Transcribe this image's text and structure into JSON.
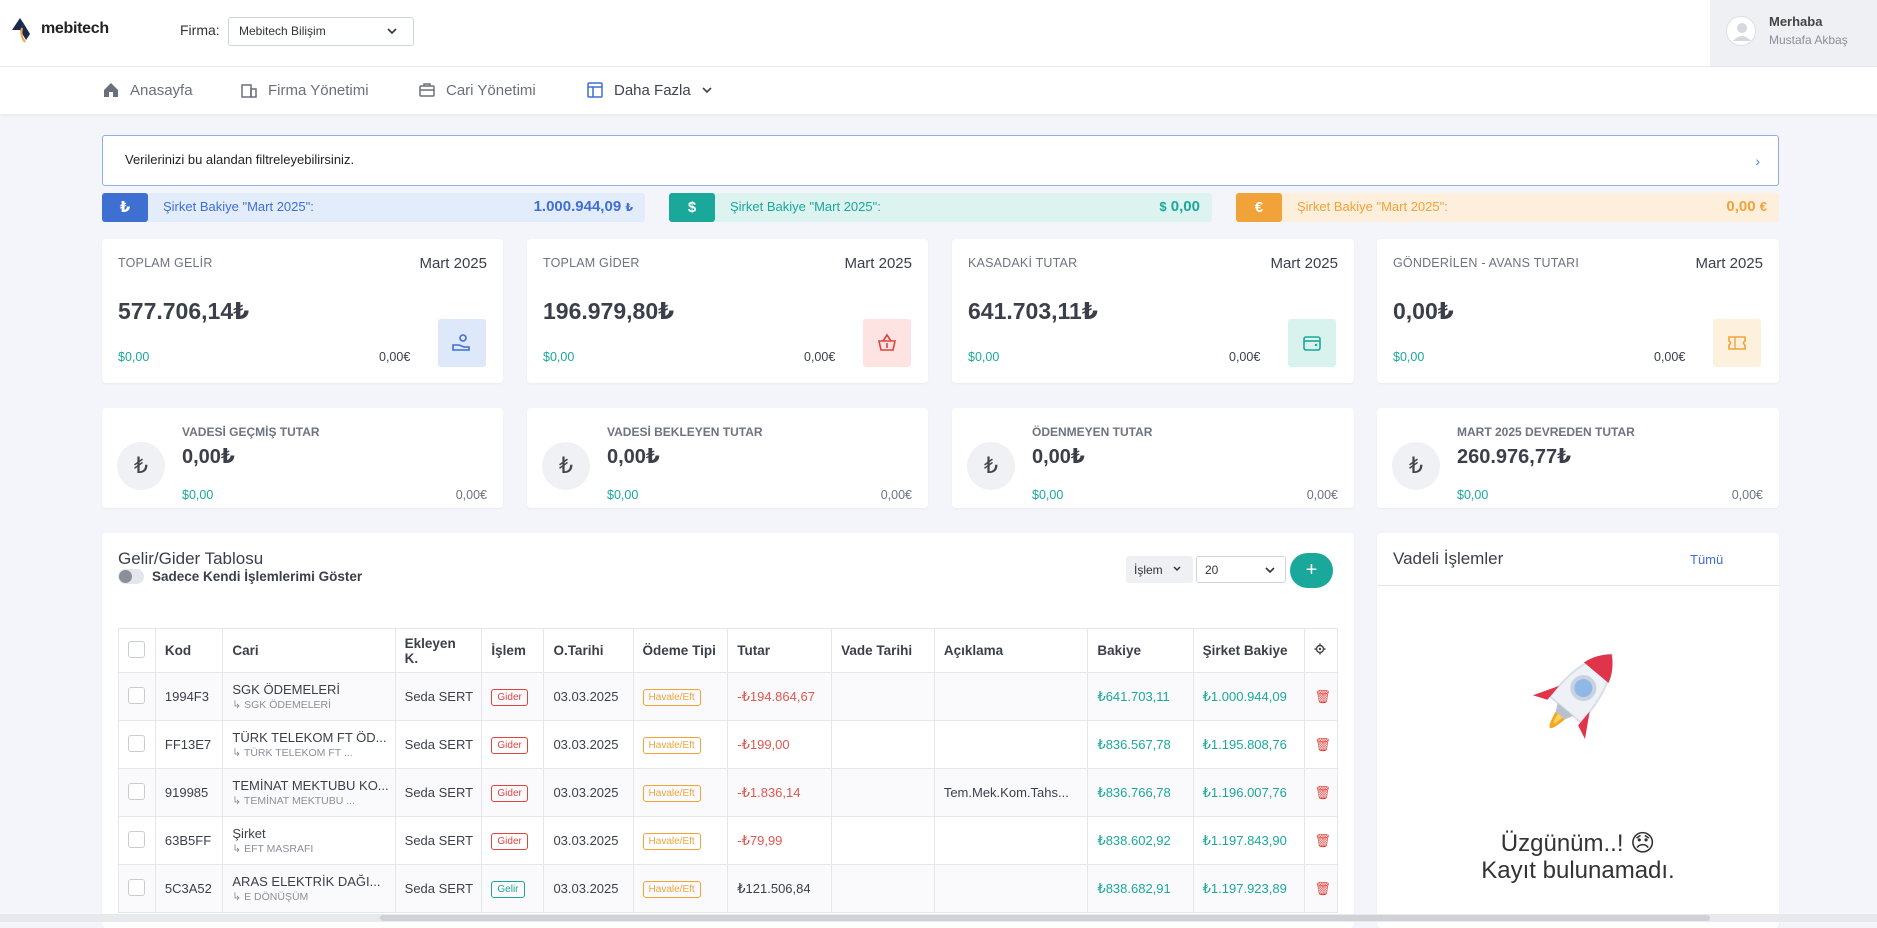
{
  "header": {
    "logo_text": "mebitech",
    "firma_label": "Firma:",
    "firma_value": "Mebitech Bilişim",
    "greeting": "Merhaba",
    "user_name": "Mustafa Akbaş"
  },
  "nav": [
    {
      "label": "Anasayfa",
      "icon": "home-icon"
    },
    {
      "label": "Firma Yönetimi",
      "icon": "building-icon"
    },
    {
      "label": "Cari Yönetimi",
      "icon": "briefcase-icon"
    },
    {
      "label": "Daha Fazla",
      "icon": "table-icon"
    }
  ],
  "filter": {
    "text": "Verilerinizi bu alandan filtreleyebilirsiniz."
  },
  "balances": [
    {
      "symbol": "₺",
      "label": "Şirket Bakiye \"Mart 2025\":",
      "value": "1.000.944,09",
      "unit": "₺",
      "color": "#3f6fd1"
    },
    {
      "symbol": "$",
      "label": "Şirket Bakiye \"Mart 2025\":",
      "value": "0,00",
      "unit": "$",
      "color": "#1aa89a"
    },
    {
      "symbol": "€",
      "label": "Şirket Bakiye \"Mart 2025\":",
      "value": "0,00",
      "unit": "€",
      "color": "#f1a33a"
    }
  ],
  "stats": [
    {
      "title": "TOPLAM GELİR",
      "month": "Mart 2025",
      "value": "577.706,14₺",
      "usd": "$0,00",
      "eur": "0,00€",
      "icon": "hand-money-icon"
    },
    {
      "title": "TOPLAM GİDER",
      "month": "Mart 2025",
      "value": "196.979,80₺",
      "usd": "$0,00",
      "eur": "0,00€",
      "icon": "basket-icon"
    },
    {
      "title": "KASADAKİ TUTAR",
      "month": "Mart 2025",
      "value": "641.703,11₺",
      "usd": "$0,00",
      "eur": "0,00€",
      "icon": "wallet-icon"
    },
    {
      "title": "GÖNDERİLEN - AVANS TUTARI",
      "month": "Mart 2025",
      "value": "0,00₺",
      "usd": "$0,00",
      "eur": "0,00€",
      "icon": "ticket-icon"
    }
  ],
  "minis": [
    {
      "title": "VADESİ GEÇMİŞ TUTAR",
      "value": "0,00₺",
      "usd": "$0,00",
      "eur": "0,00€",
      "symbol": "₺"
    },
    {
      "title": "VADESİ BEKLEYEN TUTAR",
      "value": "0,00₺",
      "usd": "$0,00",
      "eur": "0,00€",
      "symbol": "₺"
    },
    {
      "title": "ÖDENMEYEN TUTAR",
      "value": "0,00₺",
      "usd": "$0,00",
      "eur": "0,00€",
      "symbol": "₺"
    },
    {
      "title": "MART 2025 DEVREDEN TUTAR",
      "value": "260.976,77₺",
      "usd": "$0,00",
      "eur": "0,00€",
      "symbol": "₺"
    }
  ],
  "table": {
    "title": "Gelir/Gider Tablosu",
    "toggle_label": "Sadece Kendi İşlemlerimi Göster",
    "islem_button": "İşlem",
    "page_size": "20",
    "add_label": "+",
    "columns": [
      "Kod",
      "Cari",
      "Ekleyen K.",
      "İşlem",
      "O.Tarihi",
      "Ödeme Tipi",
      "Tutar",
      "Vade Tarihi",
      "Açıklama",
      "Bakiye",
      "Şirket Bakiye"
    ],
    "rows": [
      {
        "kod": "1994F3",
        "cari": "SGK ÖDEMELERİ",
        "cari_sub": "↳ SGK ÖDEMELERİ",
        "ekleyen": "Seda SERT",
        "islem": "Gider",
        "tarih": "03.03.2025",
        "odeme": "Havale/Eft",
        "tutar": "-₺194.864,67",
        "vade": "",
        "aciklama": "",
        "bakiye": "₺641.703,11",
        "sirket": "₺1.000.944,09"
      },
      {
        "kod": "FF13E7",
        "cari": "TÜRK TELEKOM FT ÖD...",
        "cari_sub": "↳ TÜRK TELEKOM FT ...",
        "ekleyen": "Seda SERT",
        "islem": "Gider",
        "tarih": "03.03.2025",
        "odeme": "Havale/Eft",
        "tutar": "-₺199,00",
        "vade": "",
        "aciklama": "",
        "bakiye": "₺836.567,78",
        "sirket": "₺1.195.808,76"
      },
      {
        "kod": "919985",
        "cari": "TEMİNAT MEKTUBU KO...",
        "cari_sub": "↳ TEMİNAT MEKTUBU ...",
        "ekleyen": "Seda SERT",
        "islem": "Gider",
        "tarih": "03.03.2025",
        "odeme": "Havale/Eft",
        "tutar": "-₺1.836,14",
        "vade": "",
        "aciklama": "Tem.Mek.Kom.Tahs...",
        "bakiye": "₺836.766,78",
        "sirket": "₺1.196.007,76"
      },
      {
        "kod": "63B5FF",
        "cari": "Şirket",
        "cari_sub": "↳ EFT MASRAFI",
        "ekleyen": "Seda SERT",
        "islem": "Gider",
        "tarih": "03.03.2025",
        "odeme": "Havale/Eft",
        "tutar": "-₺79,99",
        "vade": "",
        "aciklama": "",
        "bakiye": "₺838.602,92",
        "sirket": "₺1.197.843,90"
      },
      {
        "kod": "5C3A52",
        "cari": "ARAS ELEKTRİK DAĞI...",
        "cari_sub": "↳ E DÖNÜŞÜM",
        "ekleyen": "Seda SERT",
        "islem": "Gelir",
        "tarih": "03.03.2025",
        "odeme": "Havale/Eft",
        "tutar": "₺121.506,84",
        "vade": "",
        "aciklama": "",
        "bakiye": "₺838.682,91",
        "sirket": "₺1.197.923,89"
      }
    ]
  },
  "vadeli": {
    "title": "Vadeli İşlemler",
    "all_link": "Tümü",
    "empty_line1": "Üzgünüm..! 😞",
    "empty_line2": "Kayıt bulunamadı."
  }
}
